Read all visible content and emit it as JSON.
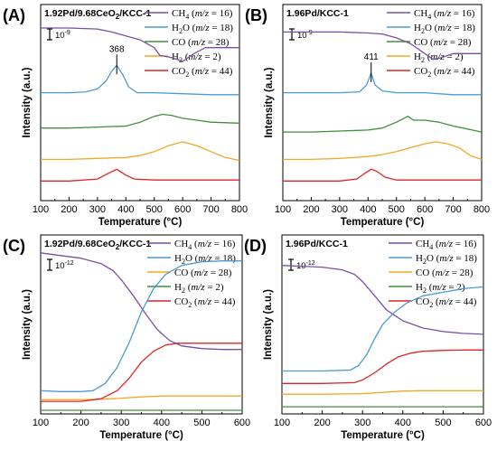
{
  "colors": {
    "CH4": "#7a4fa3",
    "H2O": "#4a9bd4",
    "CO": "#3f8f3a",
    "H2": "#f5a623",
    "CO2": "#e02424",
    "CO_cd": "#f5a623",
    "H2_cd": "#3f8f3a"
  },
  "chart_data": [
    {
      "type": "line",
      "panel": "(A)",
      "sample": "1.92Pd/9.68CeO2/KCC-1",
      "xlabel": "Temperature (°C)",
      "ylabel": "Intensity (a.u.)",
      "xlim": [
        100,
        800
      ],
      "xticks": [
        "100",
        "200",
        "300",
        "400",
        "500",
        "600",
        "700",
        "800"
      ],
      "scale_bar": "10-9",
      "peak": {
        "label": "368",
        "x": 368,
        "series": "H2O (m/z = 18)"
      },
      "legend": [
        {
          "sub": "CH",
          "subscript": "4",
          "rest": " (",
          "mz": "m/z",
          "val": " = 16)"
        },
        {
          "sub": "H",
          "subscript": "2",
          "rest": "O (",
          "mz": "m/z",
          "val": " = 18)"
        },
        {
          "sub": "CO",
          "subscript": "",
          "rest": " (",
          "mz": "m/z",
          "val": " = 28)"
        },
        {
          "sub": "H",
          "subscript": "2",
          "rest": " (",
          "mz": "m/z",
          "val": " = 2)"
        },
        {
          "sub": "CO",
          "subscript": "2",
          "rest": " (",
          "mz": "m/z",
          "val": " = 44)"
        }
      ],
      "series": [
        {
          "name": "CH4 (m/z = 16)",
          "color_key": "CH4",
          "x": [
            100,
            200,
            300,
            350,
            400,
            450,
            500,
            520,
            560,
            600,
            640,
            680,
            720,
            800
          ],
          "y": [
            88,
            88,
            87.5,
            86,
            84,
            82,
            78,
            74,
            73,
            71,
            75,
            78,
            78,
            78
          ]
        },
        {
          "name": "H2O (m/z = 18)",
          "color_key": "H2O",
          "x": [
            100,
            200,
            260,
            300,
            330,
            350,
            368,
            390,
            410,
            440,
            500,
            600,
            700,
            800
          ],
          "y": [
            55,
            55,
            55.5,
            57,
            61,
            66,
            69,
            64,
            58,
            55,
            55,
            54.5,
            54,
            54
          ]
        },
        {
          "name": "CO (m/z = 28)",
          "color_key": "CO",
          "x": [
            100,
            200,
            300,
            400,
            450,
            500,
            530,
            560,
            600,
            650,
            700,
            800
          ],
          "y": [
            37,
            37,
            37.5,
            38,
            40,
            43,
            44,
            43.5,
            42,
            41,
            40,
            39.5
          ]
        },
        {
          "name": "H2 (m/z = 2)",
          "color_key": "H2",
          "x": [
            100,
            200,
            300,
            400,
            450,
            500,
            550,
            600,
            650,
            700,
            750,
            800
          ],
          "y": [
            21,
            21,
            21.5,
            22,
            23,
            25,
            28,
            30,
            28,
            25,
            22,
            20.5
          ]
        },
        {
          "name": "CO2 (m/z = 44)",
          "color_key": "CO2",
          "x": [
            100,
            200,
            300,
            340,
            368,
            400,
            430,
            500,
            600,
            700,
            800
          ],
          "y": [
            10,
            10,
            11,
            14,
            16,
            13,
            11,
            10.5,
            10.5,
            10.5,
            10.5
          ]
        }
      ]
    },
    {
      "type": "line",
      "panel": "(B)",
      "sample": "1.96Pd/KCC-1",
      "xlabel": "Temperature (°C)",
      "ylabel": "Intensity (a.u.)",
      "xlim": [
        100,
        800
      ],
      "xticks": [
        "100",
        "200",
        "300",
        "400",
        "500",
        "600",
        "700",
        "800"
      ],
      "scale_bar": "10-9",
      "peak": {
        "label": "411",
        "x": 411,
        "series": "H2O (m/z = 18)"
      },
      "legend": [
        {
          "sub": "CH",
          "subscript": "4",
          "rest": " (",
          "mz": "m/z",
          "val": " = 16)"
        },
        {
          "sub": "H",
          "subscript": "2",
          "rest": "O (",
          "mz": "m/z",
          "val": " = 18)"
        },
        {
          "sub": "CO",
          "subscript": "",
          "rest": " (",
          "mz": "m/z",
          "val": " = 28)"
        },
        {
          "sub": "H",
          "subscript": "2",
          "rest": " (",
          "mz": "m/z",
          "val": " = 2)"
        },
        {
          "sub": "CO",
          "subscript": "2",
          "rest": " (",
          "mz": "m/z",
          "val": " = 44)"
        }
      ],
      "series": [
        {
          "name": "CH4 (m/z = 16)",
          "color_key": "CH4",
          "x": [
            100,
            200,
            300,
            400,
            450,
            500,
            550,
            600,
            630,
            660,
            700,
            800
          ],
          "y": [
            86,
            86,
            86,
            85.5,
            85,
            83,
            80,
            75,
            72,
            73,
            75,
            75
          ]
        },
        {
          "name": "H2O (m/z = 18)",
          "color_key": "H2O",
          "x": [
            100,
            200,
            300,
            370,
            395,
            411,
            425,
            450,
            500,
            600,
            700,
            800
          ],
          "y": [
            55,
            55,
            55,
            55.5,
            59,
            65,
            59,
            56,
            55,
            55,
            54,
            54
          ]
        },
        {
          "name": "CO (m/z = 28)",
          "color_key": "CO",
          "x": [
            100,
            200,
            300,
            400,
            450,
            500,
            540,
            560,
            600,
            650,
            700,
            750,
            800
          ],
          "y": [
            35,
            35,
            35.5,
            36,
            37,
            40,
            43,
            41,
            41,
            40,
            38,
            36.5,
            35
          ]
        },
        {
          "name": "H2 (m/z = 2)",
          "color_key": "H2",
          "x": [
            100,
            200,
            300,
            400,
            450,
            500,
            550,
            600,
            640,
            680,
            720,
            760,
            800
          ],
          "y": [
            21,
            21,
            21.5,
            22.5,
            23.5,
            25,
            27,
            29,
            30,
            29,
            27,
            23,
            21
          ]
        },
        {
          "name": "CO2 (m/z = 44)",
          "color_key": "CO2",
          "x": [
            100,
            200,
            300,
            360,
            390,
            411,
            430,
            460,
            500,
            600,
            700,
            800
          ],
          "y": [
            10,
            10,
            10,
            11,
            14,
            16,
            15,
            12,
            10.5,
            10.5,
            10.5,
            10.5
          ]
        }
      ]
    },
    {
      "type": "line",
      "panel": "(C)",
      "sample": "1.92Pd/9.68CeO2/KCC-1",
      "xlabel": "Temperature (°C)",
      "ylabel": "Intensity (a.u.)",
      "xlim": [
        100,
        600
      ],
      "xticks": [
        "100",
        "200",
        "300",
        "400",
        "500",
        "600"
      ],
      "scale_bar": "10-12",
      "legend": [
        {
          "sub": "CH",
          "subscript": "4",
          "rest": " (",
          "mz": "m/z",
          "val": " = 16)"
        },
        {
          "sub": "H",
          "subscript": "2",
          "rest": "O (",
          "mz": "m/z",
          "val": " = 18)"
        },
        {
          "sub": "CO",
          "subscript": "",
          "rest": " (",
          "mz": "m/z",
          "val": " = 28)"
        },
        {
          "sub": "H",
          "subscript": "2",
          "rest": " (",
          "mz": "m/z",
          "val": " = 2)"
        },
        {
          "sub": "CO",
          "subscript": "2",
          "rest": " (",
          "mz": "m/z",
          "val": " = 44)"
        }
      ],
      "series": [
        {
          "name": "CH4 (m/z = 16)",
          "color_key": "CH4",
          "x": [
            100,
            150,
            200,
            250,
            280,
            300,
            330,
            360,
            390,
            420,
            450,
            500,
            550,
            600
          ],
          "y": [
            90,
            88.5,
            87,
            84,
            80,
            75,
            66,
            56,
            47,
            41,
            38,
            36.5,
            36,
            36
          ]
        },
        {
          "name": "H2O (m/z = 18)",
          "color_key": "H2O",
          "x": [
            100,
            150,
            200,
            230,
            260,
            290,
            320,
            350,
            380,
            410,
            450,
            500,
            550,
            600
          ],
          "y": [
            13,
            12.5,
            12.5,
            13,
            17,
            26,
            40,
            57,
            70,
            78,
            83,
            85,
            85.5,
            85.5
          ]
        },
        {
          "name": "CO (m/z = 28)",
          "color_key": "CO_cd",
          "x": [
            100,
            200,
            250,
            300,
            350,
            400,
            450,
            500,
            600
          ],
          "y": [
            8,
            8,
            8.2,
            8.8,
            9.5,
            10,
            10,
            10,
            10
          ]
        },
        {
          "name": "H2 (m/z = 2)",
          "color_key": "H2_cd",
          "x": [
            100,
            200,
            300,
            400,
            500,
            600
          ],
          "y": [
            2,
            2,
            2,
            2,
            2,
            2
          ]
        },
        {
          "name": "CO2 (m/z = 44)",
          "color_key": "CO2",
          "x": [
            100,
            150,
            200,
            250,
            290,
            320,
            350,
            380,
            410,
            440,
            480,
            520,
            600
          ],
          "y": [
            7,
            7,
            7,
            8.5,
            13,
            20,
            29,
            35,
            38.5,
            39.5,
            39.5,
            39.5,
            39.5
          ]
        }
      ]
    },
    {
      "type": "line",
      "panel": "(D)",
      "sample": "1.96Pd/KCC-1",
      "xlabel": "Temperature (°C)",
      "ylabel": "Intensity (a.u.)",
      "xlim": [
        100,
        600
      ],
      "xticks": [
        "100",
        "200",
        "300",
        "400",
        "500",
        "600"
      ],
      "scale_bar": "10-12",
      "legend": [
        {
          "sub": "CH",
          "subscript": "4",
          "rest": " (",
          "mz": "m/z",
          "val": " = 16)"
        },
        {
          "sub": "H",
          "subscript": "2",
          "rest": "O (",
          "mz": "m/z",
          "val": " = 18)"
        },
        {
          "sub": "CO",
          "subscript": "",
          "rest": " (",
          "mz": "m/z",
          "val": " = 28)"
        },
        {
          "sub": "H",
          "subscript": "2",
          "rest": " (",
          "mz": "m/z",
          "val": " = 2)"
        },
        {
          "sub": "CO",
          "subscript": "2",
          "rest": " (",
          "mz": "m/z",
          "val": " = 44)"
        }
      ],
      "series": [
        {
          "name": "CH4 (m/z = 16)",
          "color_key": "CH4",
          "x": [
            100,
            150,
            200,
            250,
            280,
            300,
            330,
            360,
            400,
            450,
            500,
            550,
            600
          ],
          "y": [
            83,
            82.5,
            82,
            80.5,
            78,
            74,
            66,
            58,
            52,
            48,
            46,
            45,
            44.5
          ]
        },
        {
          "name": "H2O (m/z = 18)",
          "color_key": "H2O",
          "x": [
            100,
            200,
            270,
            290,
            310,
            330,
            350,
            380,
            410,
            450,
            500,
            550,
            600
          ],
          "y": [
            24,
            24,
            24.5,
            27,
            33,
            42,
            50,
            57,
            62,
            66,
            68,
            70,
            71
          ]
        },
        {
          "name": "CO (m/z = 28)",
          "color_key": "CO_cd",
          "x": [
            100,
            200,
            300,
            350,
            400,
            450,
            500,
            600
          ],
          "y": [
            11,
            11,
            11.3,
            12,
            12.8,
            13,
            13,
            13
          ]
        },
        {
          "name": "H2 (m/z = 2)",
          "color_key": "H2_cd",
          "x": [
            100,
            200,
            300,
            400,
            500,
            600
          ],
          "y": [
            4,
            4,
            4,
            4,
            4,
            4
          ]
        },
        {
          "name": "CO2 (m/z = 44)",
          "color_key": "CO2",
          "x": [
            100,
            200,
            280,
            300,
            330,
            360,
            390,
            420,
            450,
            500,
            550,
            600
          ],
          "y": [
            17,
            17,
            17.5,
            19,
            23,
            28,
            32,
            34,
            35,
            35.5,
            35.7,
            35.7
          ]
        }
      ]
    }
  ]
}
